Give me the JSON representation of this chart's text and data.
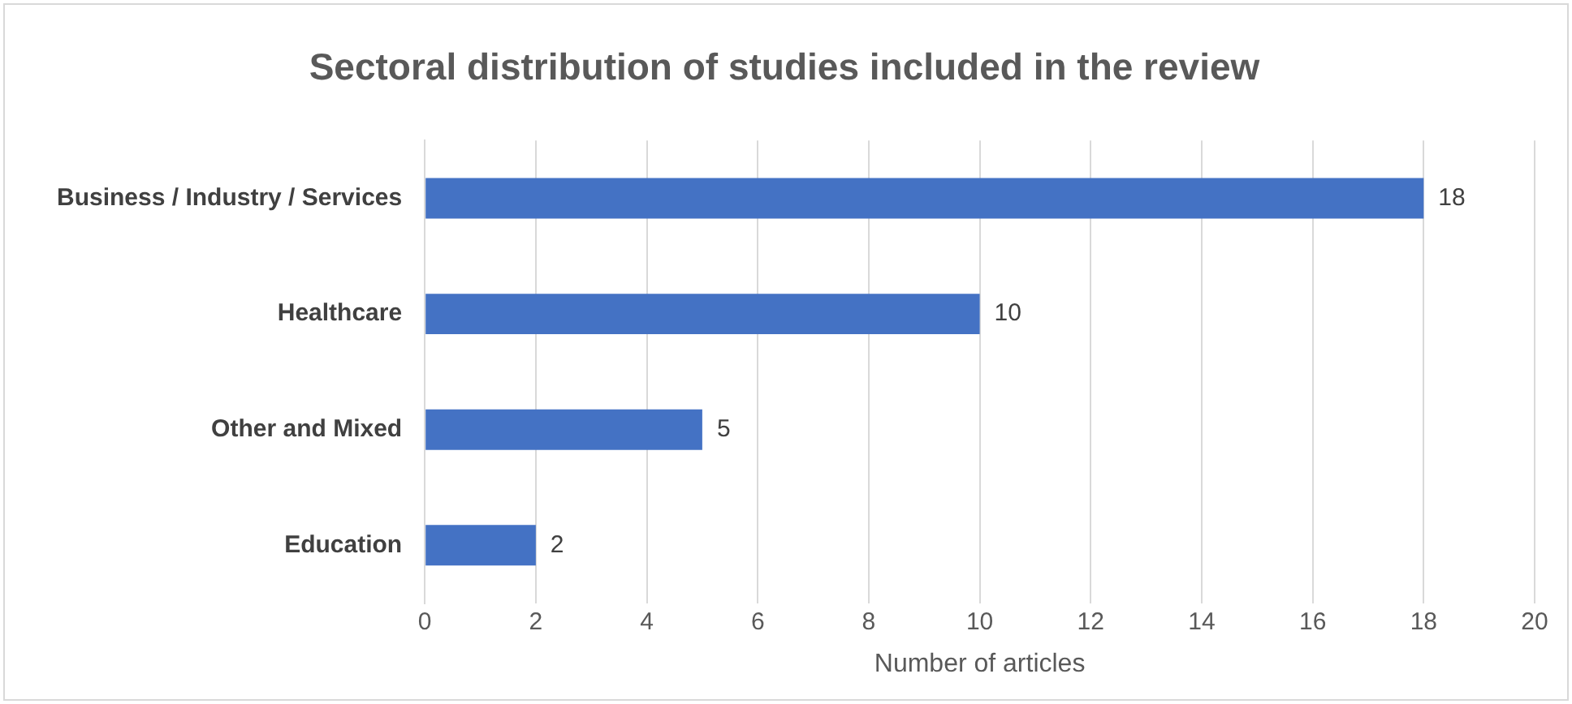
{
  "chart_data": {
    "type": "bar",
    "orientation": "horizontal",
    "title": "Sectoral distribution of studies included in the review",
    "xlabel": "Number of articles",
    "categories": [
      "Business / Industry / Services",
      "Healthcare",
      "Other and Mixed",
      "Education"
    ],
    "values": [
      18,
      10,
      5,
      2
    ],
    "color": "#4472c4",
    "xlim": [
      0,
      20
    ],
    "xticks": [
      0,
      2,
      4,
      6,
      8,
      10,
      12,
      14,
      16,
      18,
      20
    ],
    "grid": "x",
    "data_labels": true,
    "legend": false
  }
}
